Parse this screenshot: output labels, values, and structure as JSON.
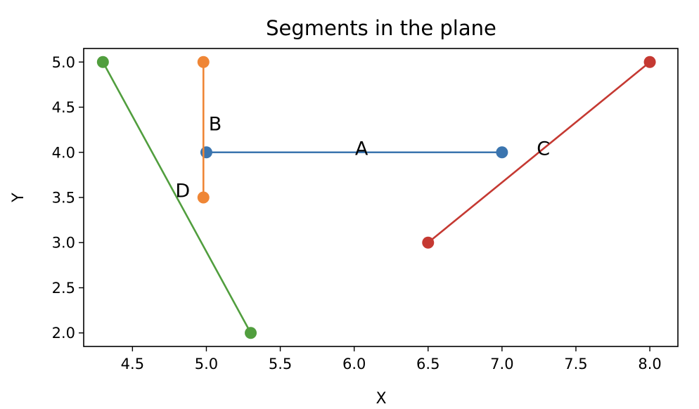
{
  "chart_data": {
    "type": "line",
    "title": "Segments in the plane",
    "xlabel": "X",
    "ylabel": "Y",
    "xlim": [
      4.17,
      8.19
    ],
    "ylim": [
      1.85,
      5.15
    ],
    "xticks": [
      "4.5",
      "5.0",
      "5.5",
      "6.0",
      "6.5",
      "7.0",
      "7.5",
      "8.0"
    ],
    "yticks": [
      "2.0",
      "2.5",
      "3.0",
      "3.5",
      "4.0",
      "4.5",
      "5.0"
    ],
    "grid": false,
    "series": [
      {
        "name": "A",
        "color": "#3b75af",
        "x": [
          5.0,
          7.0
        ],
        "y": [
          4.0,
          4.0
        ],
        "label_at": [
          6.05,
          4.05
        ]
      },
      {
        "name": "B",
        "color": "#ef8636",
        "x": [
          4.98,
          4.98
        ],
        "y": [
          3.5,
          5.0
        ],
        "label_at": [
          5.06,
          4.32
        ]
      },
      {
        "name": "C",
        "color": "#c53932",
        "x": [
          6.5,
          8.0
        ],
        "y": [
          3.0,
          5.0
        ],
        "label_at": [
          7.28,
          4.05
        ]
      },
      {
        "name": "D",
        "color": "#519e3e",
        "x": [
          4.3,
          5.3
        ],
        "y": [
          5.0,
          2.0
        ],
        "label_at": [
          4.84,
          3.58
        ]
      }
    ]
  }
}
